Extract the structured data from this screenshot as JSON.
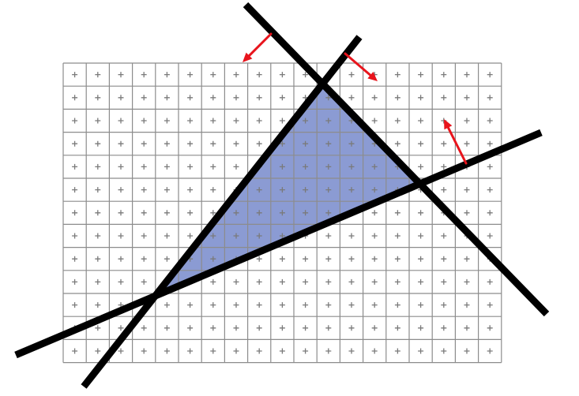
{
  "diagram": {
    "description_type": "triangle-rasterization-half-planes",
    "grid": {
      "columns": 19,
      "rows": 13,
      "sample_marker": "+"
    },
    "colors": {
      "grid_line": "#8c8c8c",
      "sample_marker": "#7a7a7a",
      "triangle_fill": "#8b9bd3",
      "edge_line": "#000000",
      "normal_arrow": "#e8141c",
      "background": "#ffffff"
    },
    "edges": [
      {
        "name": "edge-top-right"
      },
      {
        "name": "edge-left"
      },
      {
        "name": "edge-bottom"
      }
    ],
    "normal_arrows": [
      {
        "name": "normal-arrow-top-right-edge"
      },
      {
        "name": "normal-arrow-left-edge"
      },
      {
        "name": "normal-arrow-bottom-edge"
      }
    ]
  }
}
